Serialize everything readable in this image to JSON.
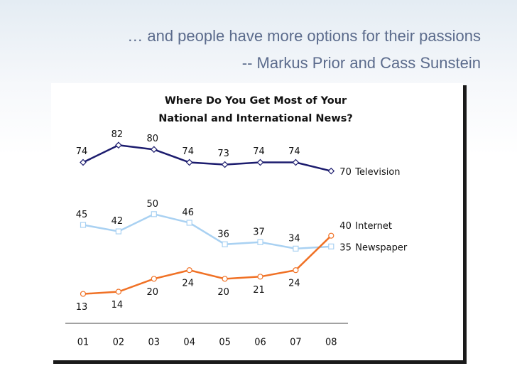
{
  "header": {
    "lines": [
      "… and people have more options for their passions",
      "-- Markus Prior and Cass Sunstein"
    ]
  },
  "chart_data": {
    "type": "line",
    "title": [
      "Where Do You Get Most of Your",
      "National and International News?"
    ],
    "categories": [
      "01",
      "02",
      "03",
      "04",
      "05",
      "06",
      "07",
      "08"
    ],
    "ylim": [
      0,
      90
    ],
    "series": [
      {
        "name": "Television",
        "color": "#1c1c6e",
        "values": [
          74,
          82,
          80,
          74,
          73,
          74,
          74,
          70
        ]
      },
      {
        "name": "Newspaper",
        "color": "#a9d1f2",
        "values": [
          45,
          42,
          50,
          46,
          36,
          37,
          34,
          35
        ]
      },
      {
        "name": "Internet",
        "color": "#f07125",
        "values": [
          13,
          14,
          20,
          24,
          20,
          21,
          24,
          40
        ]
      }
    ]
  }
}
